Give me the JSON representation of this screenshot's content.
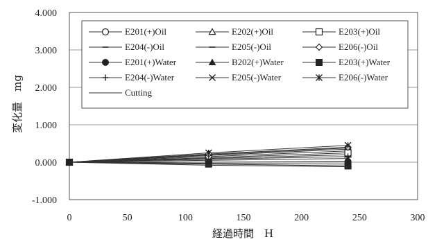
{
  "chart_data": {
    "type": "line",
    "title": "",
    "xlabel": "経過時間　H",
    "ylabel": "変化量　mg",
    "x": [
      0,
      120,
      240
    ],
    "xlim": [
      0,
      300
    ],
    "ylim": [
      -1.0,
      4.0
    ],
    "x_ticks": [
      "0",
      "50",
      "100",
      "150",
      "200",
      "250",
      "300"
    ],
    "y_ticks": [
      "4.000",
      "3.000",
      "2.000",
      "1.000",
      "0.000",
      "-1.000"
    ],
    "grid": "horizontal",
    "legend_position": "top-right",
    "series": [
      {
        "name": "E201(+)Oil",
        "values": [
          0,
          0.15,
          0.3
        ],
        "marker": "circle-open",
        "style": "solid"
      },
      {
        "name": "E202(+)Oil",
        "values": [
          0,
          0.1,
          0.2
        ],
        "marker": "triangle-open",
        "style": "solid"
      },
      {
        "name": "E203(+)Oil",
        "values": [
          0,
          0.12,
          0.25
        ],
        "marker": "square-open",
        "style": "solid"
      },
      {
        "name": "E204(-)Oil",
        "values": [
          0,
          0.2,
          0.38
        ],
        "marker": "dash",
        "style": "solid"
      },
      {
        "name": "E205(-)Oil",
        "values": [
          0,
          0.18,
          0.35
        ],
        "marker": "dash",
        "style": "solid"
      },
      {
        "name": "E206(-)Oil",
        "values": [
          0,
          0.22,
          0.4
        ],
        "marker": "diamond-open",
        "style": "solid"
      },
      {
        "name": "E201(+)Water",
        "values": [
          0,
          0.0,
          0.02
        ],
        "marker": "circle",
        "style": "solid"
      },
      {
        "name": "B202(+)Water",
        "values": [
          0,
          -0.03,
          -0.05
        ],
        "marker": "triangle",
        "style": "solid"
      },
      {
        "name": "E203(+)Water",
        "values": [
          0,
          -0.05,
          -0.1
        ],
        "marker": "square",
        "style": "solid"
      },
      {
        "name": "E204(-)Water",
        "values": [
          0,
          0.08,
          0.15
        ],
        "marker": "plus",
        "style": "solid"
      },
      {
        "name": "E205(-)Water",
        "values": [
          0,
          0.05,
          0.1
        ],
        "marker": "x",
        "style": "solid"
      },
      {
        "name": "E206(-)Water",
        "values": [
          0,
          0.25,
          0.45
        ],
        "marker": "asterisk",
        "style": "solid"
      },
      {
        "name": "Cutting",
        "values": [
          0,
          -0.08,
          -0.12
        ],
        "marker": "none",
        "style": "solid"
      }
    ]
  }
}
